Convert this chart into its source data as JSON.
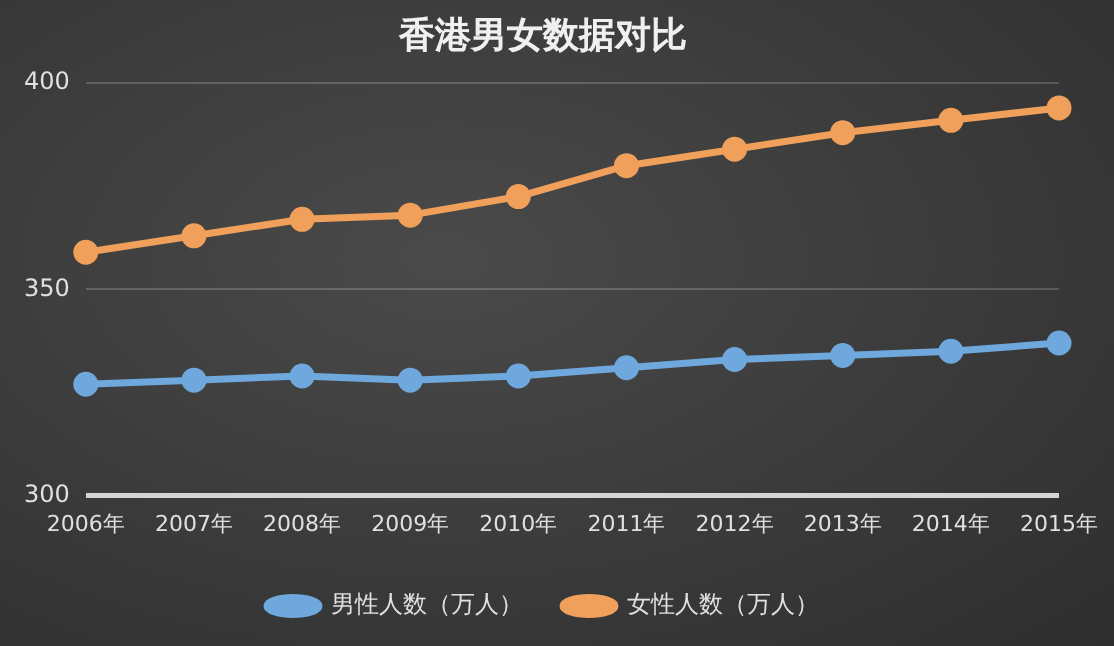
{
  "chart_data": {
    "type": "line",
    "title": "香港男女数据对比",
    "categories": [
      "2006年",
      "2007年",
      "2008年",
      "2009年",
      "2010年",
      "2011年",
      "2012年",
      "2013年",
      "2014年",
      "2015年"
    ],
    "series": [
      {
        "name": "男性人数（万人）",
        "color": "#6fa8dc",
        "values": [
          327,
          328,
          329,
          328,
          329,
          331,
          333,
          334,
          335,
          337
        ]
      },
      {
        "name": "女性人数（万人）",
        "color": "#f0a05a",
        "values": [
          359,
          363,
          367,
          368,
          372.5,
          380,
          384,
          388,
          391,
          394
        ]
      }
    ],
    "ylim": [
      300,
      400
    ],
    "yticks": [
      300,
      350,
      400
    ],
    "grid": "y",
    "legend": "bottom",
    "marker": "circle",
    "line_style": "solid"
  }
}
